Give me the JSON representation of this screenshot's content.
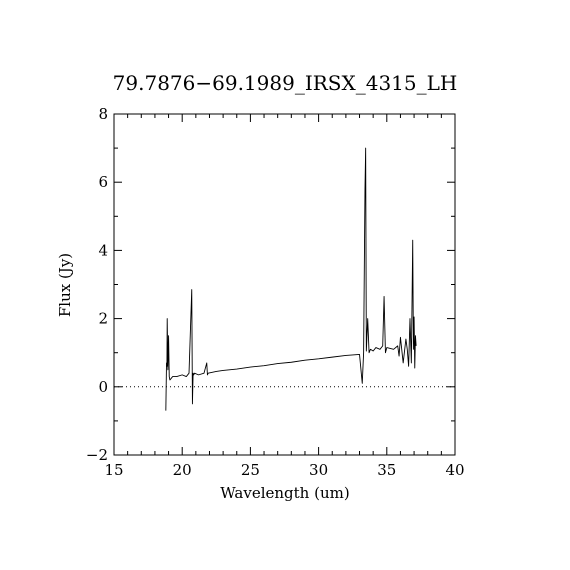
{
  "chart_data": {
    "type": "line",
    "title": "79.7876−69.1989_IRSX_4315_LH",
    "xlabel": "Wavelength (um)",
    "ylabel": "Flux (Jy)",
    "xlim": [
      15,
      40
    ],
    "ylim": [
      -2,
      8
    ],
    "xticks": [
      15,
      20,
      25,
      30,
      35,
      40
    ],
    "xtick_labels": [
      "15",
      "20",
      "25",
      "30",
      "35",
      "40"
    ],
    "yticks": [
      -2,
      0,
      2,
      4,
      6,
      8
    ],
    "ytick_labels": [
      "−2",
      "0",
      "2",
      "4",
      "6",
      "8"
    ],
    "grid": false,
    "zero_line": "dotted",
    "series": [
      {
        "color": "#000000",
        "x": [
          18.8,
          18.85,
          18.88,
          18.9,
          18.95,
          19.0,
          19.05,
          19.1,
          19.3,
          19.6,
          20.0,
          20.3,
          20.5,
          20.7,
          20.75,
          20.8,
          20.85,
          20.9,
          21.2,
          21.6,
          21.8,
          21.85,
          21.9,
          22.5,
          23.0,
          24.0,
          24.5,
          25.0,
          26.0,
          27.0,
          28.0,
          29.0,
          30.0,
          31.0,
          32.0,
          33.0,
          33.2,
          33.3,
          33.4,
          33.45,
          33.5,
          33.6,
          33.7,
          33.8,
          34.0,
          34.2,
          34.5,
          34.7,
          34.8,
          34.9,
          35.0,
          35.5,
          35.8,
          35.9,
          36.0,
          36.2,
          36.4,
          36.5,
          36.6,
          36.7,
          36.8,
          36.9,
          36.95,
          37.0,
          37.05,
          37.1,
          37.15
        ],
        "y": [
          -0.7,
          0.7,
          0.6,
          2.0,
          0.5,
          1.5,
          0.3,
          0.2,
          0.3,
          0.3,
          0.35,
          0.3,
          0.4,
          2.85,
          -0.5,
          0.4,
          0.35,
          0.4,
          0.35,
          0.4,
          0.7,
          0.35,
          0.4,
          0.45,
          0.48,
          0.52,
          0.55,
          0.58,
          0.62,
          0.68,
          0.72,
          0.78,
          0.82,
          0.87,
          0.92,
          0.95,
          0.1,
          1.0,
          5.8,
          7.0,
          1.05,
          2.0,
          1.0,
          1.1,
          1.05,
          1.15,
          1.1,
          1.2,
          2.65,
          1.0,
          1.15,
          1.1,
          1.2,
          0.9,
          1.45,
          0.7,
          1.4,
          1.1,
          0.6,
          2.0,
          0.7,
          4.3,
          1.1,
          2.05,
          0.55,
          1.5,
          1.2
        ]
      }
    ]
  }
}
